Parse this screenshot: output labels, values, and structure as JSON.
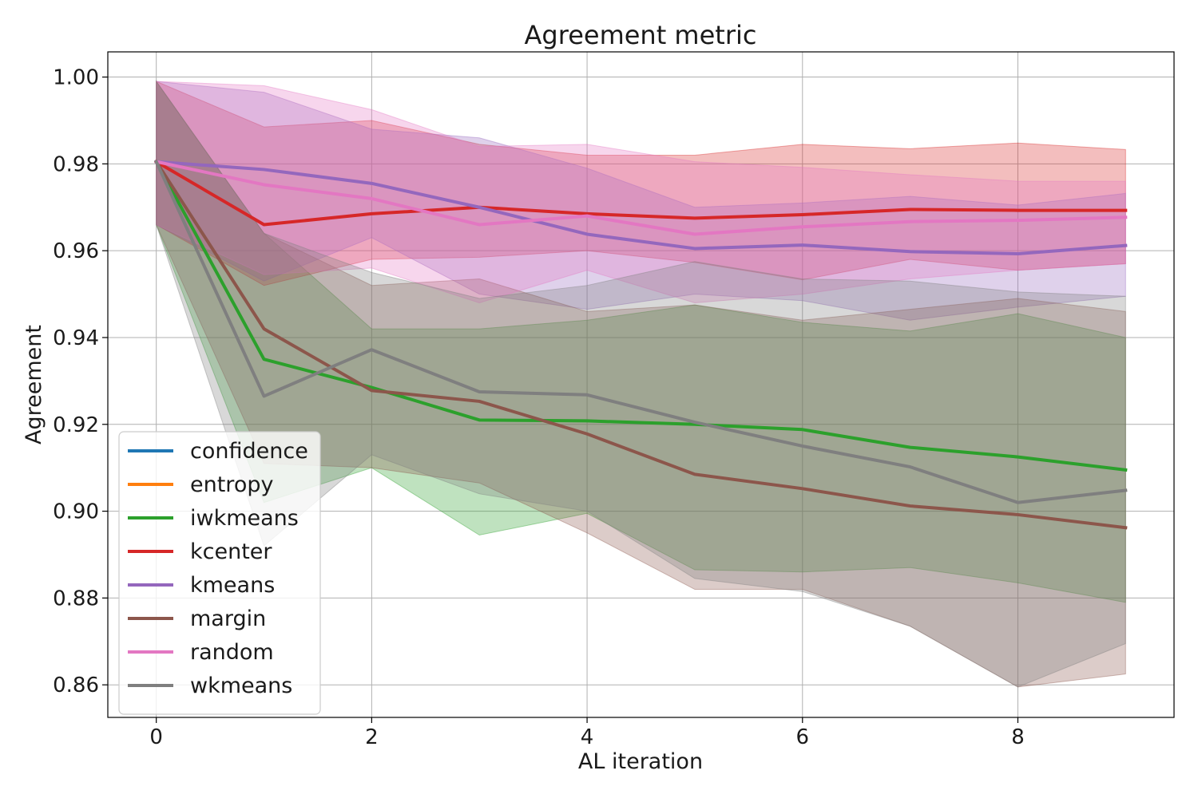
{
  "chart_data": {
    "type": "line",
    "title": "Agreement metric",
    "xlabel": "AL iteration",
    "ylabel": "Agreement",
    "xlim": [
      -0.45,
      9.45
    ],
    "ylim": [
      0.8525,
      1.0058
    ],
    "xticks": [
      0,
      2,
      4,
      6,
      8
    ],
    "yticks": [
      0.86,
      0.88,
      0.9,
      0.92,
      0.94,
      0.96,
      0.98,
      1.0
    ],
    "xtick_labels": [
      "0",
      "2",
      "4",
      "6",
      "8"
    ],
    "ytick_labels": [
      "0.86",
      "0.88",
      "0.90",
      "0.92",
      "0.94",
      "0.96",
      "0.98",
      "1.00"
    ],
    "grid": true,
    "legend_position": "lower-left",
    "x": [
      0,
      1,
      2,
      3,
      4,
      5,
      6,
      7,
      8,
      9
    ],
    "series": [
      {
        "name": "confidence",
        "color": "#1f77b4",
        "values": [
          0.9805,
          0.942,
          0.9278,
          0.9253,
          0.9178,
          0.9085,
          0.9052,
          0.9012,
          0.8992,
          0.8962
        ],
        "lower": [
          0.966,
          0.911,
          0.91,
          0.9065,
          0.895,
          0.882,
          0.882,
          0.8735,
          0.8595,
          0.8625
        ],
        "upper": [
          0.999,
          0.964,
          0.952,
          0.9535,
          0.946,
          0.9475,
          0.944,
          0.9465,
          0.949,
          0.946
        ],
        "visible": false
      },
      {
        "name": "entropy",
        "color": "#ff7f0e",
        "values": [
          0.9805,
          0.942,
          0.9278,
          0.9253,
          0.9178,
          0.9085,
          0.9052,
          0.9012,
          0.8992,
          0.8962
        ],
        "lower": [
          0.966,
          0.911,
          0.91,
          0.9065,
          0.895,
          0.882,
          0.882,
          0.8735,
          0.8595,
          0.8625
        ],
        "upper": [
          0.999,
          0.964,
          0.952,
          0.9535,
          0.946,
          0.9475,
          0.944,
          0.9465,
          0.949,
          0.946
        ],
        "visible": false
      },
      {
        "name": "iwkmeans",
        "color": "#2ca02c",
        "values": [
          0.9805,
          0.935,
          0.9285,
          0.921,
          0.9208,
          0.92,
          0.9188,
          0.9147,
          0.9125,
          0.9095
        ],
        "lower": [
          0.966,
          0.902,
          0.91,
          0.8945,
          0.8995,
          0.8865,
          0.886,
          0.887,
          0.8835,
          0.879
        ],
        "upper": [
          0.999,
          0.964,
          0.942,
          0.942,
          0.944,
          0.9475,
          0.9435,
          0.9415,
          0.9455,
          0.94
        ],
        "visible": true
      },
      {
        "name": "kcenter",
        "color": "#d62728",
        "values": [
          0.9805,
          0.966,
          0.9685,
          0.97,
          0.9685,
          0.9675,
          0.9683,
          0.9695,
          0.9693,
          0.9693
        ],
        "lower": [
          0.966,
          0.952,
          0.958,
          0.9585,
          0.96,
          0.9573,
          0.9533,
          0.958,
          0.9555,
          0.957
        ],
        "upper": [
          0.999,
          0.9885,
          0.99,
          0.9845,
          0.982,
          0.982,
          0.9845,
          0.9835,
          0.9848,
          0.9833
        ],
        "visible": true
      },
      {
        "name": "kmeans",
        "color": "#9467bd",
        "values": [
          0.9805,
          0.9787,
          0.9755,
          0.97,
          0.9638,
          0.9605,
          0.9613,
          0.9598,
          0.9593,
          0.9612
        ],
        "lower": [
          0.966,
          0.953,
          0.963,
          0.95,
          0.9465,
          0.95,
          0.9485,
          0.944,
          0.947,
          0.9495
        ],
        "upper": [
          0.999,
          0.9965,
          0.988,
          0.986,
          0.979,
          0.97,
          0.971,
          0.9725,
          0.9705,
          0.9732
        ],
        "visible": true
      },
      {
        "name": "margin",
        "color": "#8c564b",
        "values": [
          0.9805,
          0.942,
          0.9278,
          0.9253,
          0.9178,
          0.9085,
          0.9052,
          0.9012,
          0.8992,
          0.8962
        ],
        "lower": [
          0.966,
          0.911,
          0.91,
          0.9065,
          0.895,
          0.882,
          0.882,
          0.8735,
          0.8595,
          0.8625
        ],
        "upper": [
          0.999,
          0.964,
          0.952,
          0.9535,
          0.946,
          0.9475,
          0.944,
          0.9465,
          0.949,
          0.946
        ],
        "visible": true
      },
      {
        "name": "random",
        "color": "#e377c2",
        "values": [
          0.9805,
          0.9752,
          0.972,
          0.966,
          0.968,
          0.9638,
          0.9655,
          0.9667,
          0.967,
          0.9677
        ],
        "lower": [
          0.966,
          0.9545,
          0.956,
          0.948,
          0.9555,
          0.948,
          0.95,
          0.9535,
          0.9555,
          0.957
        ],
        "upper": [
          0.999,
          0.998,
          0.9925,
          0.984,
          0.9845,
          0.9805,
          0.9792,
          0.9775,
          0.976,
          0.976
        ],
        "visible": true
      },
      {
        "name": "wkmeans",
        "color": "#7f7f7f",
        "values": [
          0.9805,
          0.9265,
          0.9372,
          0.9275,
          0.9268,
          0.9205,
          0.915,
          0.9102,
          0.902,
          0.9048
        ],
        "lower": [
          0.966,
          0.892,
          0.913,
          0.904,
          0.9,
          0.8845,
          0.8815,
          0.8735,
          0.8595,
          0.8695
        ],
        "upper": [
          0.999,
          0.964,
          0.955,
          0.949,
          0.952,
          0.9575,
          0.9535,
          0.953,
          0.9505,
          0.9495
        ],
        "visible": true
      }
    ]
  }
}
